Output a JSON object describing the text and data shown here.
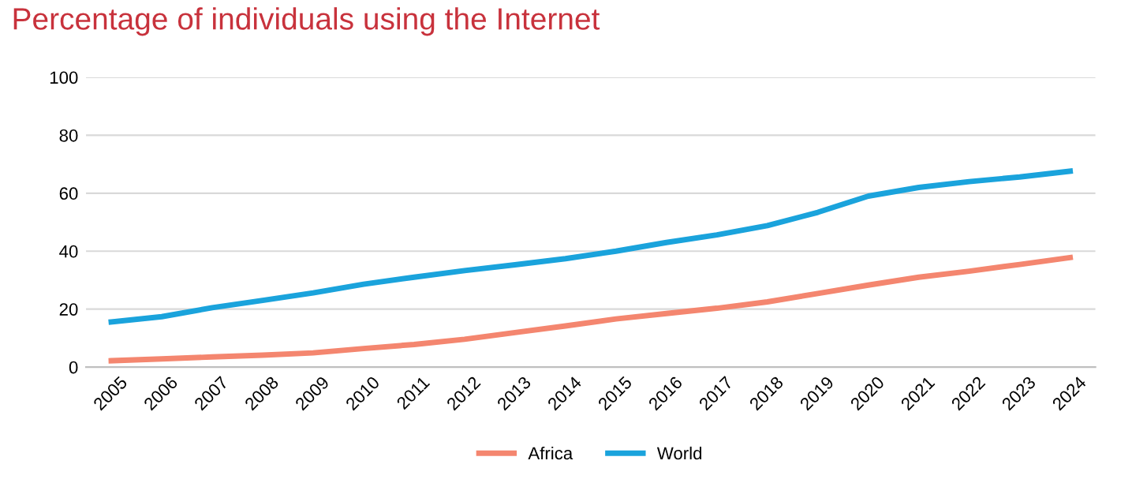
{
  "chart_data": {
    "type": "line",
    "title": "Percentage of individuals using the Internet",
    "categories": [
      "2005",
      "2006",
      "2007",
      "2008",
      "2009",
      "2010",
      "2011",
      "2012",
      "2013",
      "2014",
      "2015",
      "2016",
      "2017",
      "2018",
      "2019",
      "2020",
      "2021",
      "2022",
      "2023",
      "2024"
    ],
    "series": [
      {
        "name": "Africa",
        "color": "#f4866f",
        "values": [
          2.2,
          2.8,
          3.5,
          4.1,
          4.9,
          6.4,
          7.8,
          9.6,
          11.9,
          14.2,
          16.6,
          18.5,
          20.3,
          22.5,
          25.4,
          28.3,
          31,
          33.1,
          35.4,
          37.8
        ]
      },
      {
        "name": "World",
        "color": "#1aa3dc",
        "values": [
          15.6,
          17.4,
          20.5,
          23,
          25.6,
          28.6,
          31,
          33.3,
          35.3,
          37.4,
          40,
          43,
          45.6,
          48.8,
          53.4,
          59,
          62,
          64,
          65.6,
          67.6
        ]
      }
    ],
    "ylim": [
      0,
      100
    ],
    "yticks": [
      0,
      20,
      40,
      60,
      80,
      100
    ],
    "grid": "y",
    "legend": "bottom",
    "marker": "none",
    "line_style": "solid"
  }
}
